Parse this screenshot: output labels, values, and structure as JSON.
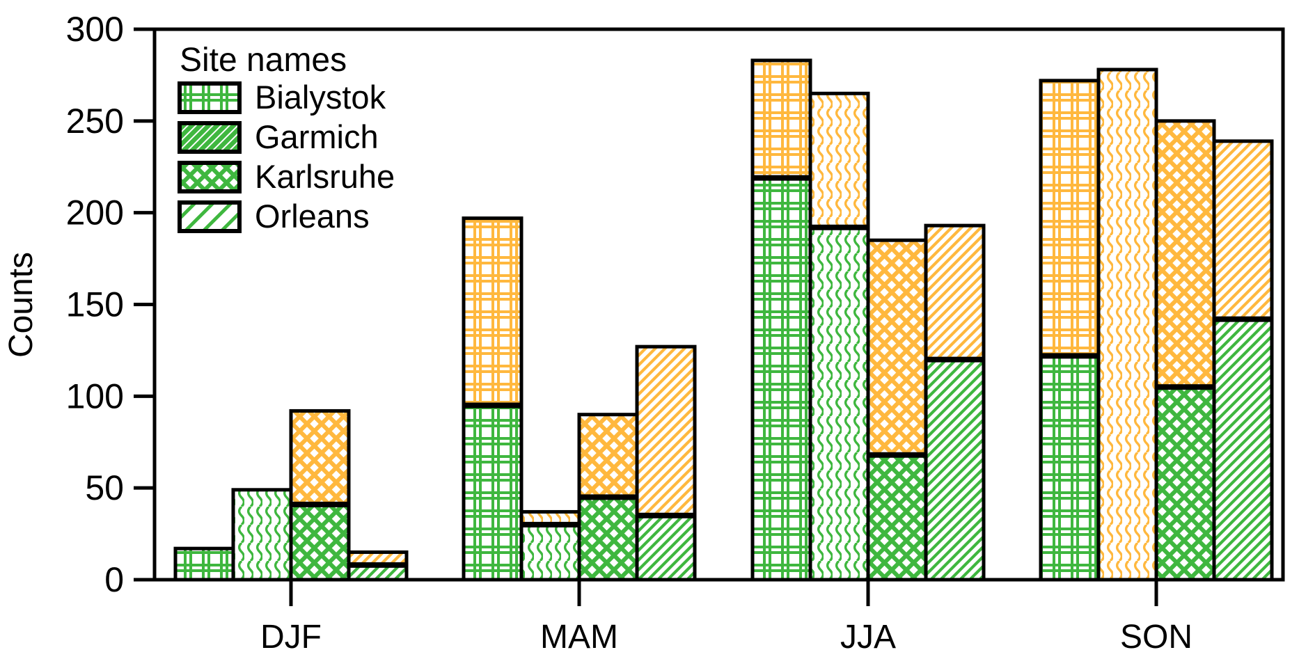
{
  "chart_data": {
    "type": "bar",
    "stacked": true,
    "orientation": "vertical",
    "title": "",
    "xlabel": "",
    "ylabel": "Counts",
    "ylim": [
      0,
      300
    ],
    "yticks": [
      0,
      50,
      100,
      150,
      200,
      250,
      300
    ],
    "categories": [
      "DJF",
      "MAM",
      "JJA",
      "SON"
    ],
    "legend": {
      "title": "Site names",
      "position": "top-left"
    },
    "grid": false,
    "sites": [
      {
        "name": "Bialystok",
        "hatch": "plaid-grid",
        "green_values": [
          17,
          95,
          219,
          122
        ],
        "orange_values": [
          0,
          102,
          64,
          150
        ],
        "totals": [
          17,
          197,
          283,
          272
        ]
      },
      {
        "name": "Garmich",
        "hatch": "vertical-wave",
        "green_values": [
          49,
          30,
          192,
          0
        ],
        "orange_values": [
          0,
          7,
          73,
          278
        ],
        "totals": [
          49,
          37,
          265,
          278
        ]
      },
      {
        "name": "Karlsruhe",
        "hatch": "diamond-crosshatch",
        "green_values": [
          41,
          45,
          68,
          105
        ],
        "orange_values": [
          51,
          45,
          117,
          145
        ],
        "totals": [
          92,
          90,
          185,
          250
        ]
      },
      {
        "name": "Orleans",
        "hatch": "diagonal",
        "green_values": [
          8,
          35,
          120,
          142
        ],
        "orange_values": [
          7,
          92,
          73,
          97
        ],
        "totals": [
          15,
          127,
          193,
          239
        ]
      }
    ],
    "colors": {
      "green": "#3fb73f",
      "orange": "#ffb83e",
      "outline": "#000000",
      "text": "#000000"
    }
  }
}
